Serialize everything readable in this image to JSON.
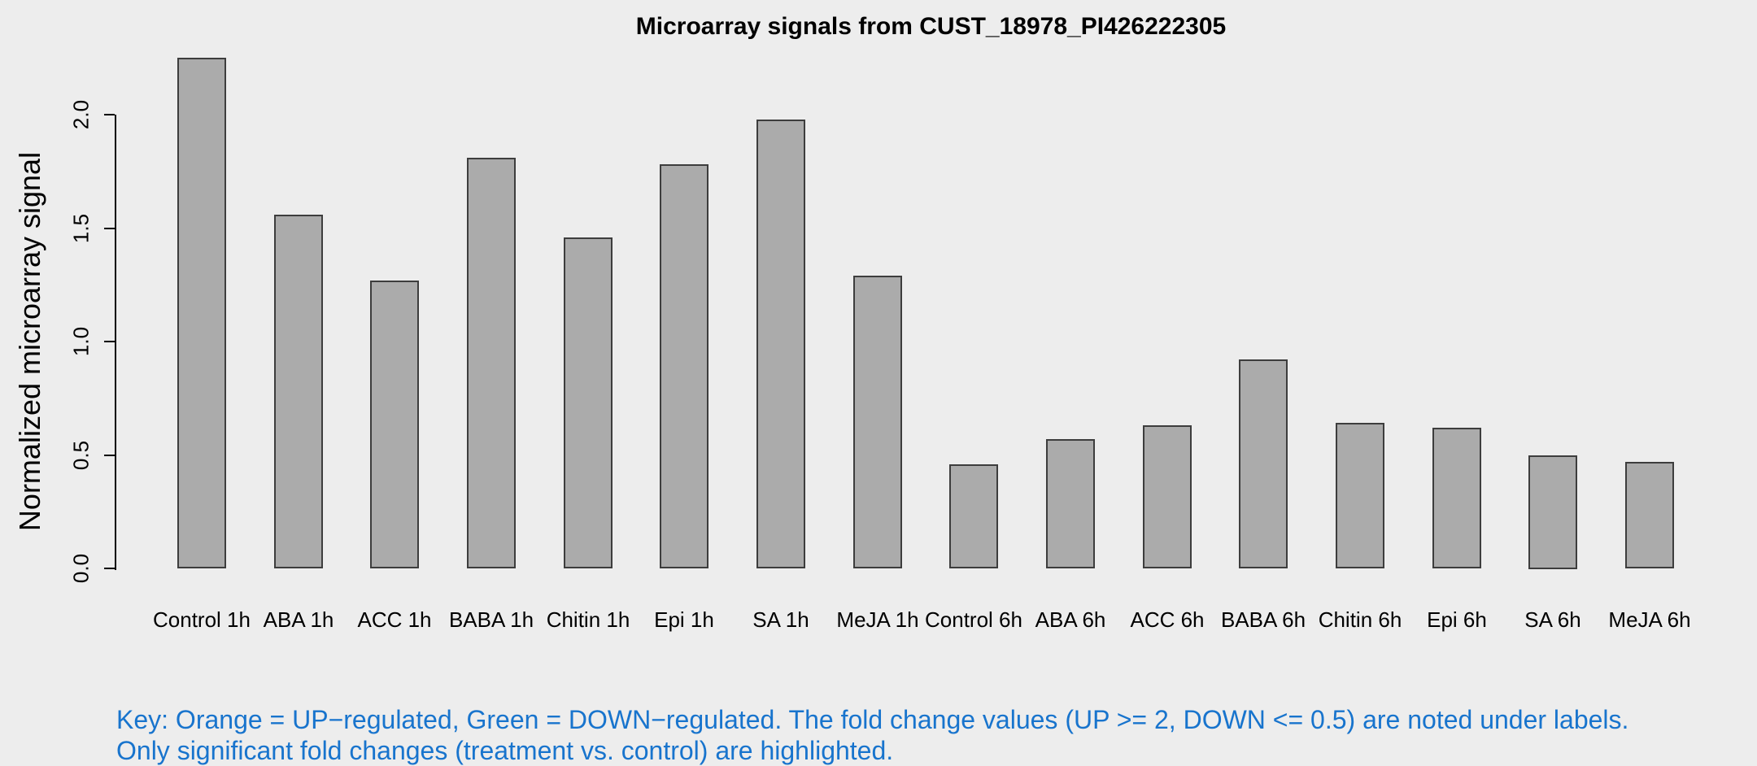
{
  "title": "Microarray signals from CUST_18978_PI426222305",
  "key": {
    "line1": "Key: Orange = UP−regulated, Green = DOWN−regulated. The fold change values (UP >= 2, DOWN <= 0.5) are noted under labels.",
    "line2": "Only significant fold changes (treatment vs. control) are highlighted."
  },
  "colors": {
    "background": "#EDEDED",
    "bar_fill": "#ABABAB",
    "bar_border": "#3D3D3D",
    "axis": "#000000",
    "key_text": "#1874CD"
  },
  "chart_data": {
    "type": "bar",
    "title": "Microarray signals from CUST_18978_PI426222305",
    "categories": [
      "Control 1h",
      "ABA 1h",
      "ACC 1h",
      "BABA 1h",
      "Chitin 1h",
      "Epi 1h",
      "SA 1h",
      "MeJA 1h",
      "Control 6h",
      "ABA 6h",
      "ACC 6h",
      "BABA 6h",
      "Chitin 6h",
      "Epi 6h",
      "SA 6h",
      "MeJA 6h"
    ],
    "values": [
      2.25,
      1.56,
      1.27,
      1.81,
      1.46,
      1.78,
      1.98,
      1.29,
      0.46,
      0.57,
      0.63,
      0.92,
      0.64,
      0.62,
      0.5,
      0.47
    ],
    "xlabel": "",
    "ylabel": "Normalized microarray signal",
    "ylim": [
      0,
      2.26
    ],
    "yticks": [
      0.0,
      0.5,
      1.0,
      1.5,
      2.0
    ],
    "grid": false,
    "legend": "none",
    "bar_color": "#ABABAB"
  }
}
